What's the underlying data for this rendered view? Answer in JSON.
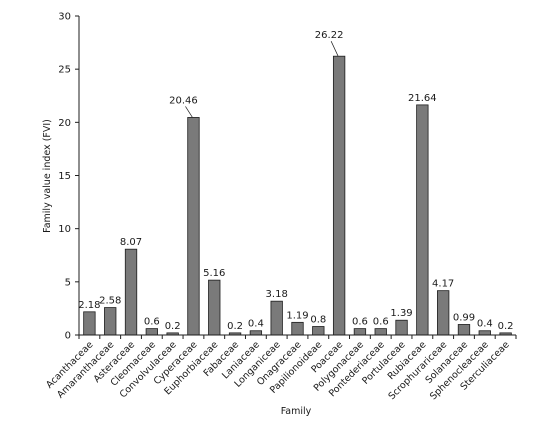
{
  "chart_data": {
    "type": "bar",
    "title": "",
    "xlabel": "Family",
    "ylabel": "Family value index (FVI)",
    "ylim": [
      0,
      30
    ],
    "yticks": [
      0,
      5,
      10,
      15,
      20,
      25,
      30
    ],
    "grid": false,
    "bar_color": "#7a7a7a",
    "bar_stroke": "#1e1e1e",
    "categories": [
      "Acanthaceae",
      "Amaranthaceae",
      "Asteraceae",
      "Cleomaceae",
      "Convolvulaceae",
      "Cyperaceae",
      "Euphorbiaceae",
      "Fabaceae",
      "Laniaceae",
      "Longaniceae",
      "Onagraceae",
      "Papilionoideae",
      "Poaceae",
      "Polygonaceae",
      "Pontederiaceae",
      "Portulaceae",
      "Rubiaceae",
      "Scrophurariceae",
      "Solanaceae",
      "Sphenocleaceae",
      "Sterculiaceae"
    ],
    "values": [
      2.18,
      2.58,
      8.07,
      0.6,
      0.2,
      20.46,
      5.16,
      0.2,
      0.4,
      3.18,
      1.19,
      0.8,
      26.22,
      0.6,
      0.6,
      1.39,
      21.64,
      4.17,
      0.99,
      0.4,
      0.2
    ],
    "value_labels": [
      "2.18",
      "2.58",
      "8.07",
      "0.6",
      "0.2",
      "20.46",
      "5.16",
      "0.2",
      "0.4",
      "3.18",
      "1.19",
      "0.8",
      "26.22",
      "0.6",
      "0.6",
      "1.39",
      "21.64",
      "4.17",
      "0.99",
      "0.4",
      "0.2"
    ]
  }
}
